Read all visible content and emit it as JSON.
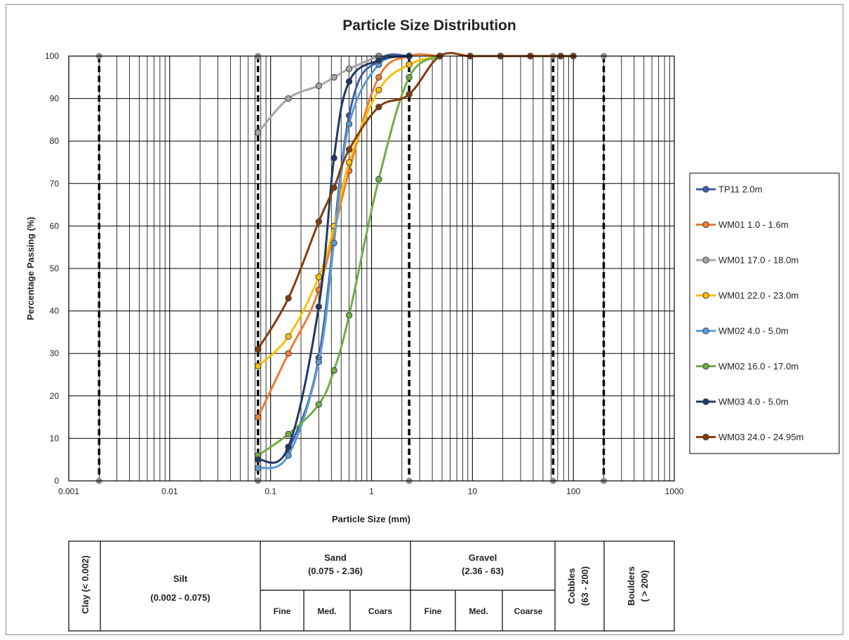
{
  "chart_data": {
    "type": "line",
    "title": "Particle Size Distribution",
    "xlabel": "Particle Size (mm)",
    "ylabel": "Percentage Passing (%)",
    "x_scale": "log",
    "xlim": [
      0.001,
      1000
    ],
    "ylim": [
      0,
      100
    ],
    "x_ticks": [
      "0.001",
      "0.01",
      "0.1",
      "1",
      "10",
      "100",
      "1000"
    ],
    "y_ticks": [
      "0",
      "10",
      "20",
      "30",
      "40",
      "50",
      "60",
      "70",
      "80",
      "90",
      "100"
    ],
    "grid": true,
    "legend_position": "right",
    "boundaries": [
      {
        "x": 0.002,
        "color": "#000000"
      },
      {
        "x": 0.075,
        "color": "#000000"
      },
      {
        "x": 2.36,
        "color": "#000000"
      },
      {
        "x": 63,
        "color": "#000000"
      },
      {
        "x": 200,
        "color": "#000000"
      }
    ],
    "series": [
      {
        "name": "TP11 2.0m",
        "color": "#3a5fa8",
        "x": [
          0.15,
          0.3,
          0.6,
          1.18,
          2.36
        ],
        "y": [
          7,
          29,
          86,
          99,
          100
        ]
      },
      {
        "name": "WM01 1.0 - 1.6m",
        "color": "#ed7d31",
        "x": [
          0.075,
          0.15,
          0.3,
          0.6,
          1.18,
          2.36,
          4.75
        ],
        "y": [
          15,
          30,
          45,
          73,
          95,
          100,
          100
        ]
      },
      {
        "name": "WM01 17.0 - 18.0m",
        "color": "#a5a5a5",
        "x": [
          0.075,
          0.15,
          0.3,
          0.425,
          0.6,
          1.18
        ],
        "y": [
          82,
          90,
          93,
          95,
          97,
          100
        ]
      },
      {
        "name": "WM01 22.0 - 23.0m",
        "color": "#ffc000",
        "x": [
          0.075,
          0.15,
          0.3,
          0.425,
          0.6,
          1.18,
          2.36,
          4.75
        ],
        "y": [
          27,
          34,
          48,
          60,
          75,
          92,
          98,
          100
        ]
      },
      {
        "name": "WM02 4.0 - 5.0m",
        "color": "#5b9bd5",
        "x": [
          0.075,
          0.15,
          0.3,
          0.425,
          0.6,
          1.18,
          2.36
        ],
        "y": [
          3,
          6,
          28,
          56,
          84,
          98,
          100
        ]
      },
      {
        "name": "WM02 16.0 - 17.0m",
        "color": "#70ad47",
        "x": [
          0.075,
          0.15,
          0.3,
          0.425,
          0.6,
          1.18,
          2.36,
          4.75
        ],
        "y": [
          6,
          11,
          18,
          26,
          39,
          71,
          95,
          100
        ]
      },
      {
        "name": "WM03 4.0 - 5.0m",
        "color": "#203864",
        "x": [
          0.075,
          0.15,
          0.3,
          0.425,
          0.6,
          1.18,
          2.36
        ],
        "y": [
          5,
          8,
          41,
          76,
          94,
          99,
          100
        ]
      },
      {
        "name": "WM03 24.0 - 24.95m",
        "color": "#843c0c",
        "x": [
          0.075,
          0.15,
          0.3,
          0.425,
          0.6,
          1.18,
          2.36,
          4.75,
          9.5,
          19,
          37.5,
          75,
          100
        ],
        "y": [
          31,
          43,
          61,
          69,
          78,
          88,
          91,
          100,
          100,
          100,
          100,
          100,
          100
        ]
      }
    ],
    "classification": {
      "clay": "Clay (< 0.002)",
      "silt": "Silt",
      "silt_range": "(0.002 - 0.075)",
      "sand": "Sand",
      "sand_range": "(0.075 - 2.36)",
      "gravel": "Gravel",
      "gravel_range": "(2.36 - 63)",
      "cobbles": "Cobbles",
      "cobbles_range": "(63 - 200)",
      "boulders": "Boulders",
      "boulders_range": "( > 200)",
      "sand_sub": [
        "Fine",
        "Med.",
        "Coars"
      ],
      "gravel_sub": [
        "Fine",
        "Med.",
        "Coarse"
      ]
    }
  }
}
